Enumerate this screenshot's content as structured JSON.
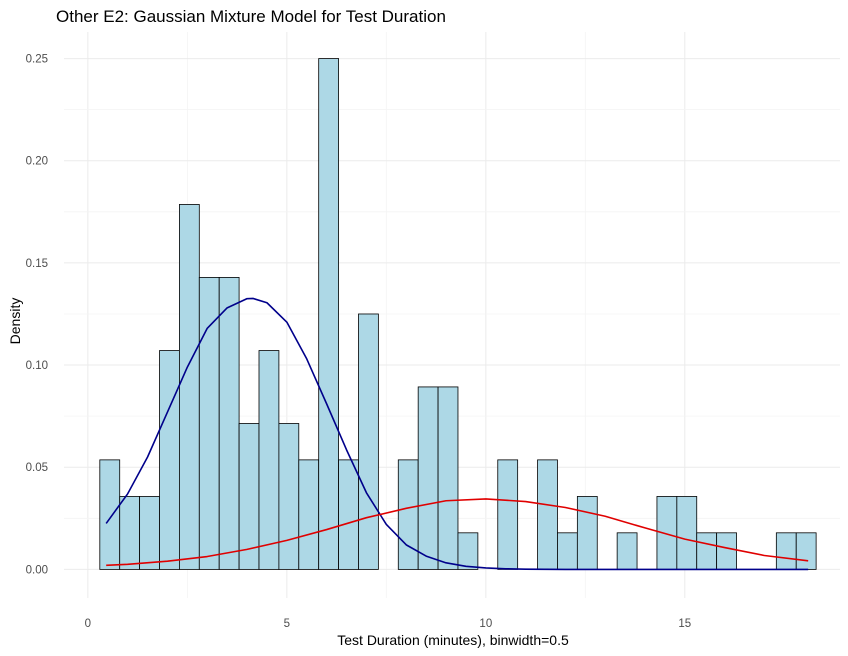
{
  "chart_data": {
    "type": "bar",
    "title": "Other E2: Gaussian Mixture Model for Test Duration",
    "xlabel": "Test Duration (minutes), binwidth=0.5",
    "ylabel": "Density",
    "xlim": [
      -0.6,
      18.9
    ],
    "ylim": [
      -0.014,
      0.263
    ],
    "xticks": [
      0,
      5,
      10,
      15
    ],
    "yticks": [
      0.0,
      0.05,
      0.1,
      0.15,
      0.2,
      0.25
    ],
    "xtick_labels": [
      "0",
      "5",
      "10",
      "15"
    ],
    "ytick_labels": [
      "0.00",
      "0.05",
      "0.10",
      "0.15",
      "0.20",
      "0.25"
    ],
    "grid": true,
    "binwidth": 0.5,
    "bar_fill": "#add8e6",
    "bar_stroke": "#000000",
    "bins": [
      {
        "x0": 0.3,
        "x1": 0.8,
        "density": 0.0536
      },
      {
        "x0": 0.8,
        "x1": 1.3,
        "density": 0.0357
      },
      {
        "x0": 1.3,
        "x1": 1.8,
        "density": 0.0357
      },
      {
        "x0": 1.8,
        "x1": 2.3,
        "density": 0.1071
      },
      {
        "x0": 2.3,
        "x1": 2.8,
        "density": 0.1786
      },
      {
        "x0": 2.8,
        "x1": 3.3,
        "density": 0.1429
      },
      {
        "x0": 3.3,
        "x1": 3.8,
        "density": 0.1429
      },
      {
        "x0": 3.8,
        "x1": 4.3,
        "density": 0.0714
      },
      {
        "x0": 4.3,
        "x1": 4.8,
        "density": 0.1071
      },
      {
        "x0": 4.8,
        "x1": 5.3,
        "density": 0.0714
      },
      {
        "x0": 5.3,
        "x1": 5.8,
        "density": 0.0536
      },
      {
        "x0": 5.8,
        "x1": 6.3,
        "density": 0.25
      },
      {
        "x0": 6.3,
        "x1": 6.8,
        "density": 0.0536
      },
      {
        "x0": 6.8,
        "x1": 7.3,
        "density": 0.125
      },
      {
        "x0": 7.8,
        "x1": 8.3,
        "density": 0.0536
      },
      {
        "x0": 8.3,
        "x1": 8.8,
        "density": 0.0893
      },
      {
        "x0": 8.8,
        "x1": 9.3,
        "density": 0.0893
      },
      {
        "x0": 9.3,
        "x1": 9.8,
        "density": 0.0179
      },
      {
        "x0": 10.3,
        "x1": 10.8,
        "density": 0.0536
      },
      {
        "x0": 11.3,
        "x1": 11.8,
        "density": 0.0536
      },
      {
        "x0": 11.8,
        "x1": 12.3,
        "density": 0.0179
      },
      {
        "x0": 12.3,
        "x1": 12.8,
        "density": 0.0357
      },
      {
        "x0": 13.3,
        "x1": 13.8,
        "density": 0.0179
      },
      {
        "x0": 14.3,
        "x1": 14.8,
        "density": 0.0357
      },
      {
        "x0": 14.8,
        "x1": 15.3,
        "density": 0.0357
      },
      {
        "x0": 15.3,
        "x1": 15.8,
        "density": 0.0179
      },
      {
        "x0": 15.8,
        "x1": 16.3,
        "density": 0.0179
      },
      {
        "x0": 17.3,
        "x1": 17.8,
        "density": 0.0179
      },
      {
        "x0": 17.8,
        "x1": 18.3,
        "density": 0.0179
      }
    ],
    "curves": [
      {
        "type": "line",
        "color": "#00008b",
        "x": [
          0.46,
          1.0,
          1.5,
          2.0,
          2.5,
          3.0,
          3.5,
          4.0,
          4.15,
          4.5,
          5.0,
          5.5,
          6.0,
          6.5,
          7.0,
          7.5,
          8.0,
          8.5,
          9.0,
          9.5,
          10.0,
          10.5,
          11.0,
          12.0,
          14.0,
          16.0,
          18.1
        ],
        "y": [
          0.0225,
          0.037,
          0.055,
          0.077,
          0.099,
          0.118,
          0.128,
          0.1325,
          0.1326,
          0.1305,
          0.121,
          0.103,
          0.081,
          0.0585,
          0.0375,
          0.022,
          0.012,
          0.0065,
          0.0032,
          0.0015,
          0.0007,
          0.0003,
          0.0001,
          0.0,
          0.0,
          0.0,
          0.0
        ]
      },
      {
        "type": "line",
        "color": "#e00000",
        "x": [
          0.46,
          1.0,
          2.0,
          3.0,
          4.0,
          5.0,
          6.0,
          7.0,
          8.0,
          9.0,
          10.0,
          11.0,
          12.0,
          13.0,
          14.0,
          15.0,
          16.0,
          17.0,
          18.1
        ],
        "y": [
          0.002,
          0.0025,
          0.004,
          0.0063,
          0.0098,
          0.0142,
          0.0195,
          0.0253,
          0.0299,
          0.0336,
          0.0345,
          0.0332,
          0.0303,
          0.026,
          0.0203,
          0.0148,
          0.0107,
          0.0068,
          0.0042
        ]
      }
    ]
  }
}
